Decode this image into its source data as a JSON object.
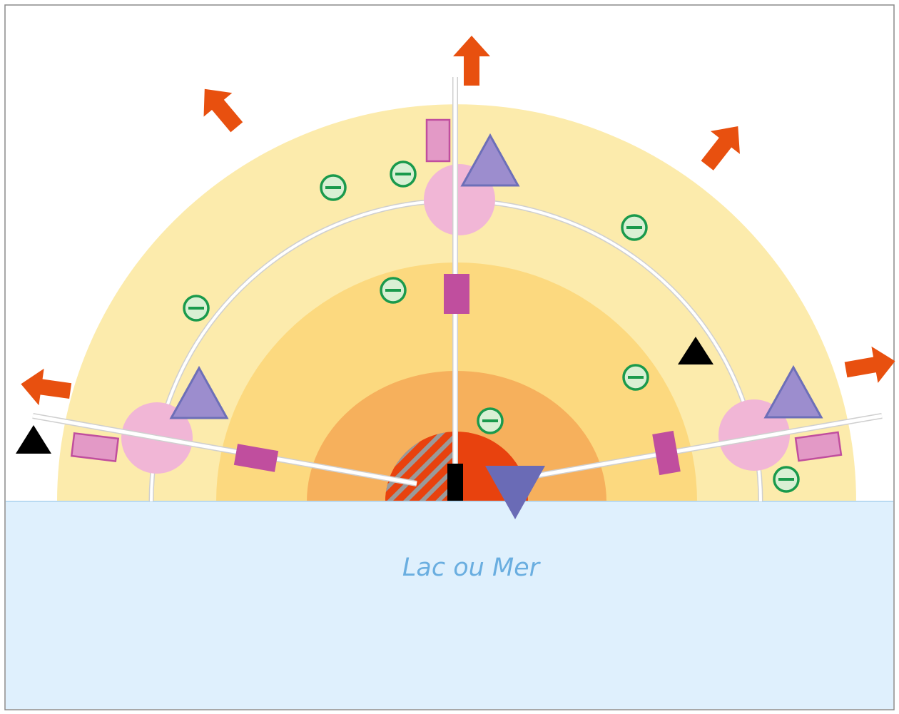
{
  "water": {
    "label": "Lac ou Mer"
  },
  "colors": {
    "zone_outer": "#fcebac",
    "zone_middle": "#fcd97f",
    "zone_inner": "#f6b05c",
    "core": "#e8420e",
    "hatch": "#9a9a9a",
    "water": "#dff0fd",
    "water_line": "#b9daf2",
    "water_text": "#6aaee0",
    "arrow": "#e8500f",
    "negative_marker": "#1a9a4c",
    "negative_fill": "#d9f0d4",
    "node": "#f1b6d6",
    "triangle": "#9c8dce",
    "triangle_stroke": "#6d6fb8",
    "rect_light": "#e399c6",
    "rect_dark": "#c04e9e",
    "road": "#ffffff",
    "frame": "#8a8a8a"
  },
  "icons": [
    "outward-arrow-icon",
    "negative-charge-icon",
    "triangle-icon",
    "black-triangle-icon",
    "rectangle-icon",
    "inverted-triangle-icon"
  ]
}
